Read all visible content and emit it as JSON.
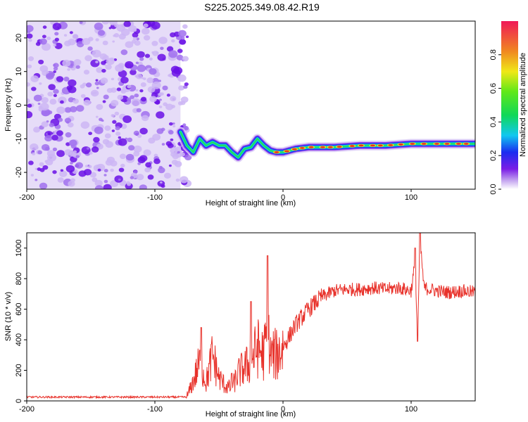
{
  "title": "S225.2025.349.08.42.R19",
  "chart_data": [
    {
      "type": "heatmap",
      "title": "S225.2025.349.08.42.R19",
      "xlabel": "Height of straight line (km)",
      "ylabel": "Frequency (Hz)",
      "xlim": [
        -200,
        150
      ],
      "ylim": [
        -25,
        25
      ],
      "xticks": [
        {
          "v": -200,
          "label": "-200"
        },
        {
          "v": -100,
          "label": "-100"
        },
        {
          "v": 0,
          "label": "0"
        },
        {
          "v": 100,
          "label": "100"
        }
      ],
      "yticks": [
        {
          "v": -20,
          "label": "-20"
        },
        {
          "v": -10,
          "label": "-10"
        },
        {
          "v": 0,
          "label": "0"
        },
        {
          "v": 10,
          "label": "10"
        },
        {
          "v": 20,
          "label": "20"
        }
      ],
      "colorbar": {
        "label": "Normalized spectral amplitude",
        "range": [
          0,
          1
        ],
        "ticks": [
          {
            "v": 0.0,
            "label": "0.0"
          },
          {
            "v": 0.2,
            "label": "0.2"
          },
          {
            "v": 0.4,
            "label": "0.4"
          },
          {
            "v": 0.6,
            "label": "0.6"
          },
          {
            "v": 0.8,
            "label": "0.8"
          }
        ]
      },
      "noise_region": {
        "x": [
          -200,
          -80
        ],
        "y": [
          -25,
          25
        ]
      },
      "ridge": [
        {
          "x": -80,
          "y": -8
        },
        {
          "x": -75,
          "y": -12
        },
        {
          "x": -70,
          "y": -14
        },
        {
          "x": -65,
          "y": -10
        },
        {
          "x": -60,
          "y": -12
        },
        {
          "x": -55,
          "y": -11
        },
        {
          "x": -50,
          "y": -12
        },
        {
          "x": -45,
          "y": -12
        },
        {
          "x": -40,
          "y": -14
        },
        {
          "x": -35,
          "y": -15.5
        },
        {
          "x": -30,
          "y": -13
        },
        {
          "x": -25,
          "y": -12.5
        },
        {
          "x": -20,
          "y": -10
        },
        {
          "x": -15,
          "y": -12
        },
        {
          "x": -10,
          "y": -13.5
        },
        {
          "x": -5,
          "y": -14
        },
        {
          "x": 0,
          "y": -14
        },
        {
          "x": 10,
          "y": -13
        },
        {
          "x": 20,
          "y": -12.5
        },
        {
          "x": 40,
          "y": -12.5
        },
        {
          "x": 60,
          "y": -12
        },
        {
          "x": 80,
          "y": -12
        },
        {
          "x": 100,
          "y": -11.5
        },
        {
          "x": 120,
          "y": -11.5
        },
        {
          "x": 150,
          "y": -11.5
        }
      ]
    },
    {
      "type": "line",
      "xlabel": "Height of straight line (km)",
      "ylabel": "SNR (10 * v/v)",
      "xlim": [
        -200,
        150
      ],
      "ylim": [
        0,
        1100
      ],
      "xticks": [
        {
          "v": -200,
          "label": "-200"
        },
        {
          "v": -100,
          "label": "-100"
        },
        {
          "v": 0,
          "label": "0"
        },
        {
          "v": 100,
          "label": "100"
        }
      ],
      "yticks": [
        {
          "v": 0,
          "label": "0"
        },
        {
          "v": 200,
          "label": "200"
        },
        {
          "v": 400,
          "label": "400"
        },
        {
          "v": 600,
          "label": "600"
        },
        {
          "v": 800,
          "label": "800"
        },
        {
          "v": 1000,
          "label": "1000"
        }
      ],
      "series": [
        {
          "name": "SNR",
          "color": "#e8322b",
          "x": [
            -200,
            -150,
            -100,
            -75,
            -70,
            -65,
            -60,
            -55,
            -50,
            -45,
            -40,
            -35,
            -30,
            -25,
            -20,
            -15,
            -12,
            -10,
            -5,
            0,
            10,
            20,
            30,
            40,
            50,
            60,
            70,
            80,
            90,
            100,
            103,
            105,
            107,
            110,
            120,
            130,
            140,
            150
          ],
          "y": [
            25,
            25,
            25,
            25,
            130,
            250,
            120,
            300,
            150,
            100,
            80,
            180,
            220,
            250,
            350,
            300,
            450,
            300,
            300,
            350,
            500,
            600,
            680,
            720,
            730,
            730,
            740,
            730,
            740,
            720,
            900,
            400,
            1050,
            740,
            720,
            710,
            720,
            710
          ]
        }
      ],
      "spikes": [
        {
          "x": -64,
          "y": 480
        },
        {
          "x": -40,
          "y": 180
        },
        {
          "x": -25,
          "y": 650
        },
        {
          "x": -12,
          "y": 950
        },
        {
          "x": 103,
          "y": 1000
        },
        {
          "x": 105,
          "y": 390
        },
        {
          "x": 107,
          "y": 1100
        }
      ]
    }
  ]
}
